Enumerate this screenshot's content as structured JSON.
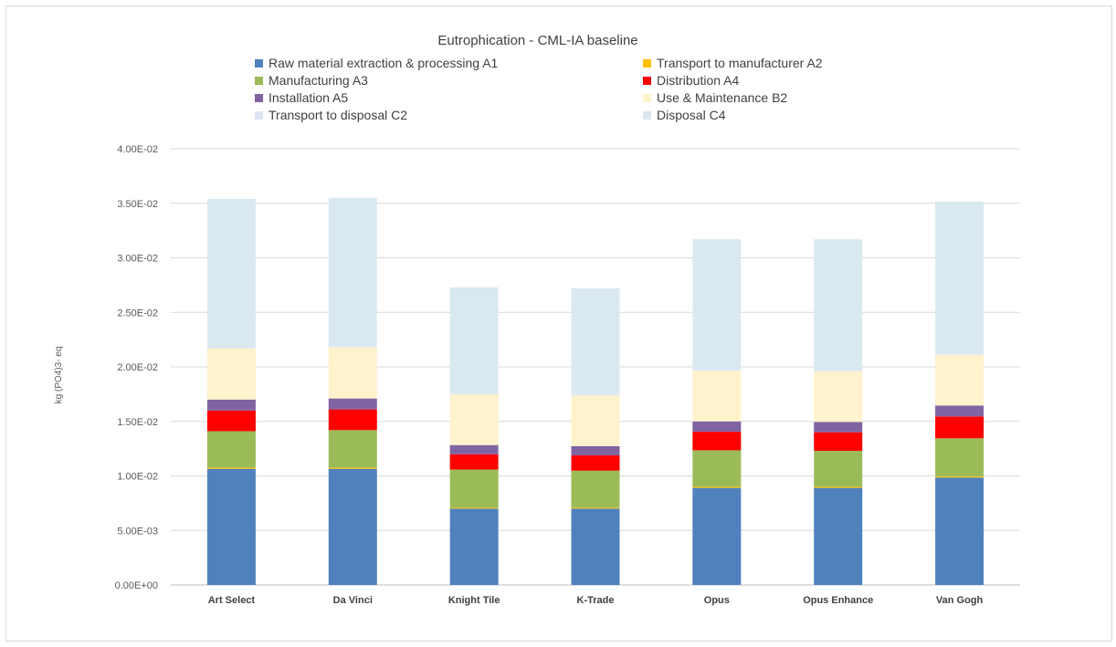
{
  "chart_data": {
    "type": "bar",
    "stacked": true,
    "title": "Eutrophication - CML-IA baseline",
    "xlabel": "",
    "ylabel": "kg (PO4)3- eq",
    "ylim": [
      0,
      0.04
    ],
    "yticks": [
      0,
      0.005,
      0.01,
      0.015,
      0.02,
      0.025,
      0.03,
      0.035,
      0.04
    ],
    "ytick_labels": [
      "0.00E+00",
      "5.00E-03",
      "1.00E-02",
      "1.50E-02",
      "2.00E-02",
      "2.50E-02",
      "3.00E-02",
      "3.50E-02",
      "4.00E-02"
    ],
    "grid": true,
    "legend_position": "top",
    "categories": [
      "Art Select",
      "Da Vinci",
      "Knight Tile",
      "K-Trade",
      "Opus",
      "Opus Enhance",
      "Van Gogh"
    ],
    "series": [
      {
        "name": "Raw material extraction & processing A1",
        "color": "#4f81bd",
        "values": [
          0.01065,
          0.01065,
          0.007,
          0.007,
          0.0089,
          0.0089,
          0.00985
        ]
      },
      {
        "name": "Transport to manufacturer A2",
        "color": "#ffc000",
        "values": [
          0.0001,
          0.0001,
          8e-05,
          8e-05,
          0.0001,
          0.0001,
          0.0001
        ]
      },
      {
        "name": "Manufacturing A3",
        "color": "#9bbb59",
        "values": [
          0.00335,
          0.00345,
          0.0035,
          0.0034,
          0.00335,
          0.0033,
          0.0035
        ]
      },
      {
        "name": "Distribution A4",
        "color": "#ff0000",
        "values": [
          0.0019,
          0.0019,
          0.0014,
          0.0014,
          0.0017,
          0.0017,
          0.002
        ]
      },
      {
        "name": "Installation A5",
        "color": "#8064a2",
        "values": [
          0.001,
          0.001,
          0.00085,
          0.00085,
          0.00095,
          0.00095,
          0.001
        ]
      },
      {
        "name": "Use & Maintenance B2",
        "color": "#fff2cc",
        "values": [
          0.0047,
          0.0047,
          0.00465,
          0.00465,
          0.00465,
          0.00465,
          0.00465
        ]
      },
      {
        "name": "Transport to disposal C2",
        "color": "#dbe5f1",
        "values": [
          0.0001,
          0.0001,
          0.0001,
          0.0001,
          0.0001,
          0.0001,
          0.0001
        ]
      },
      {
        "name": "Disposal C4",
        "color": "#dae9f1",
        "values": [
          0.0136,
          0.0136,
          0.00972,
          0.00972,
          0.01195,
          0.012,
          0.01395
        ]
      }
    ]
  }
}
